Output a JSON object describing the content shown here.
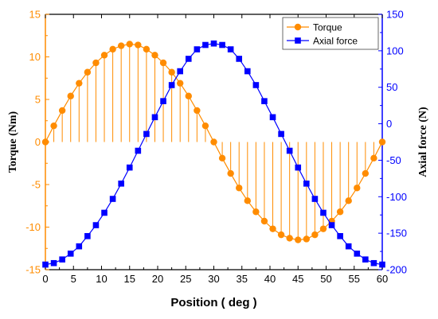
{
  "chart_data": {
    "type": "line",
    "xlabel": "Position ( deg )",
    "ylabel_left": "Torque (Nm)",
    "ylabel_right": "Axial force (N)",
    "xlim": [
      0,
      60
    ],
    "ylim_left": [
      -15,
      15
    ],
    "ylim_right": [
      -200,
      150
    ],
    "x_ticks": [
      0,
      5,
      10,
      15,
      20,
      25,
      30,
      35,
      40,
      45,
      50,
      55,
      60
    ],
    "y_ticks_left": [
      -15,
      -10,
      -5,
      0,
      5,
      10,
      15
    ],
    "y_ticks_right": [
      -200,
      -150,
      -100,
      -50,
      0,
      50,
      100,
      150
    ],
    "grid": false,
    "legend_position": "top-right",
    "colors": {
      "torque": "#FF8C00",
      "axial": "#0000FF",
      "left_axis": "#FF8C00",
      "right_axis": "#0000FF"
    },
    "x": [
      0,
      1.5,
      3,
      4.5,
      6,
      7.5,
      9,
      10.5,
      12,
      13.5,
      15,
      16.5,
      18,
      19.5,
      21,
      22.5,
      24,
      25.5,
      27,
      28.5,
      30,
      31.5,
      33,
      34.5,
      36,
      37.5,
      39,
      40.5,
      42,
      43.5,
      45,
      46.5,
      48,
      49.5,
      51,
      52.5,
      54,
      55.5,
      57,
      58.5,
      60
    ],
    "series": [
      {
        "name": "Torque",
        "axis": "left",
        "marker": "circle",
        "drop_lines": true,
        "values": [
          0,
          1.9,
          3.7,
          5.4,
          6.9,
          8.2,
          9.3,
          10.2,
          10.9,
          11.3,
          11.5,
          11.4,
          10.9,
          10.2,
          9.3,
          8.2,
          6.9,
          5.4,
          3.7,
          1.9,
          0,
          -1.9,
          -3.7,
          -5.4,
          -6.9,
          -8.2,
          -9.3,
          -10.2,
          -10.9,
          -11.3,
          -11.5,
          -11.4,
          -10.9,
          -10.2,
          -9.3,
          -8.2,
          -6.9,
          -5.4,
          -3.7,
          -1.9,
          0
        ]
      },
      {
        "name": "Axial force",
        "axis": "right",
        "marker": "square",
        "values": [
          -193,
          -191,
          -186,
          -178,
          -168,
          -154,
          -139,
          -122,
          -103,
          -82,
          -60,
          -37,
          -14,
          9,
          31,
          53,
          72,
          89,
          102,
          108,
          110,
          108,
          102,
          89,
          72,
          53,
          31,
          9,
          -14,
          -37,
          -60,
          -82,
          -103,
          -122,
          -139,
          -154,
          -168,
          -178,
          -186,
          -191,
          -193
        ]
      }
    ]
  }
}
